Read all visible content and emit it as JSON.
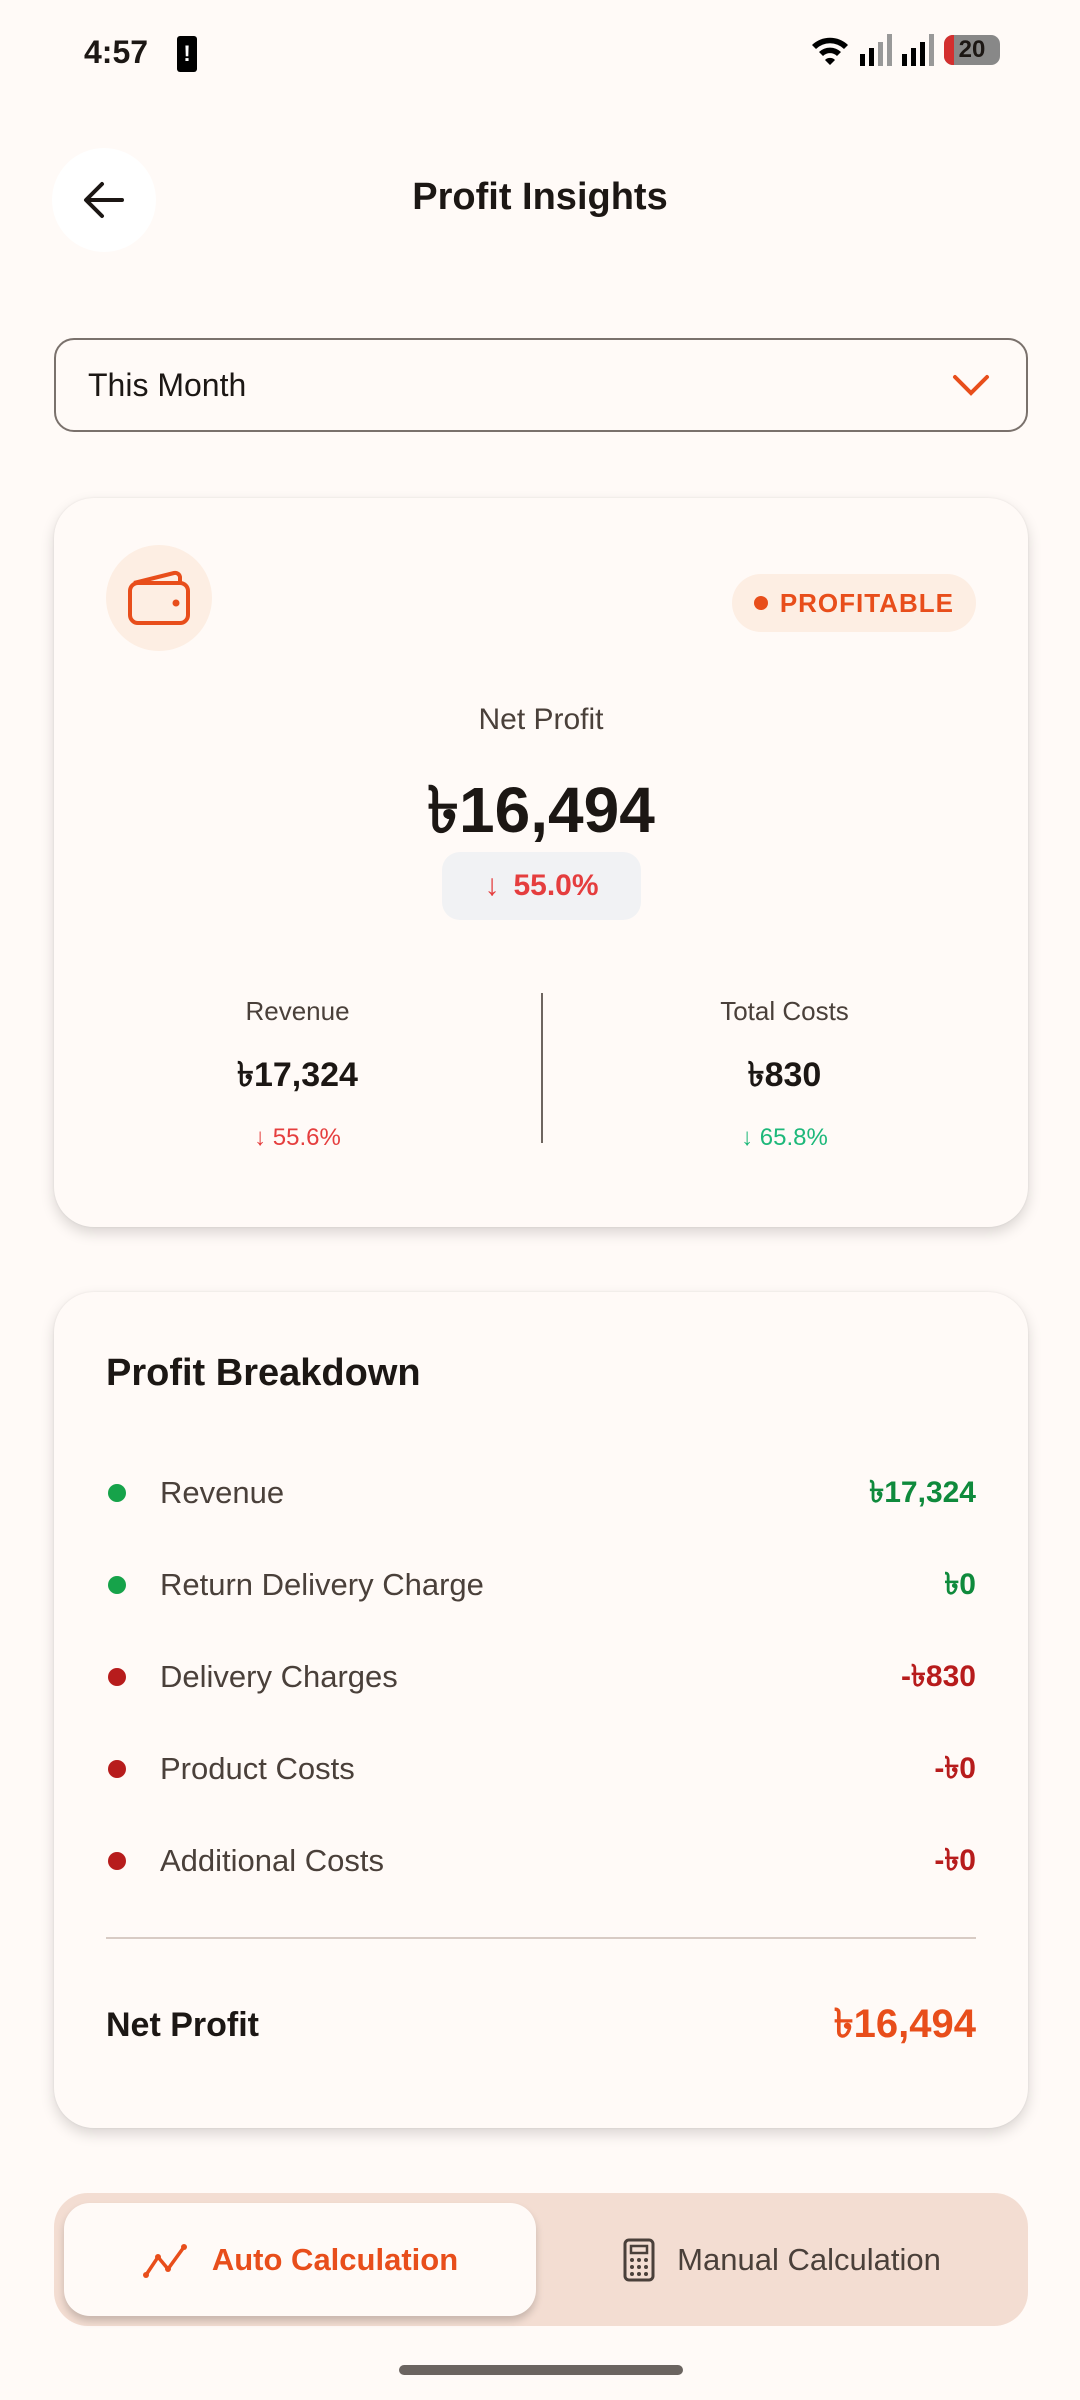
{
  "status_bar": {
    "time": "4:57",
    "battery": "20"
  },
  "header": {
    "title": "Profit Insights"
  },
  "period_select": {
    "value": "This Month"
  },
  "summary": {
    "badge": "PROFITABLE",
    "net_profit_label": "Net Profit",
    "net_profit_value": "৳16,494",
    "net_profit_change": "55.0%",
    "revenue_label": "Revenue",
    "revenue_value": "৳17,324",
    "revenue_change": "55.6%",
    "costs_label": "Total Costs",
    "costs_value": "৳830",
    "costs_change": "65.8%"
  },
  "breakdown": {
    "title": "Profit Breakdown",
    "items": [
      {
        "label": "Revenue",
        "value": "৳17,324",
        "type": "positive"
      },
      {
        "label": "Return Delivery Charge",
        "value": "৳0",
        "type": "positive"
      },
      {
        "label": "Delivery Charges",
        "value": "-৳830",
        "type": "negative"
      },
      {
        "label": "Product Costs",
        "value": "-৳0",
        "type": "negative"
      },
      {
        "label": "Additional Costs",
        "value": "-৳0",
        "type": "negative"
      }
    ],
    "total_label": "Net Profit",
    "total_value": "৳16,494"
  },
  "mode_toggle": {
    "auto": "Auto Calculation",
    "manual": "Manual Calculation",
    "selected": "auto"
  },
  "colors": {
    "accent": "#e84e1b",
    "positive": "#0f8a3c",
    "negative": "#b71c1c",
    "down_red": "#e53e3e",
    "down_green": "#1db87a"
  }
}
